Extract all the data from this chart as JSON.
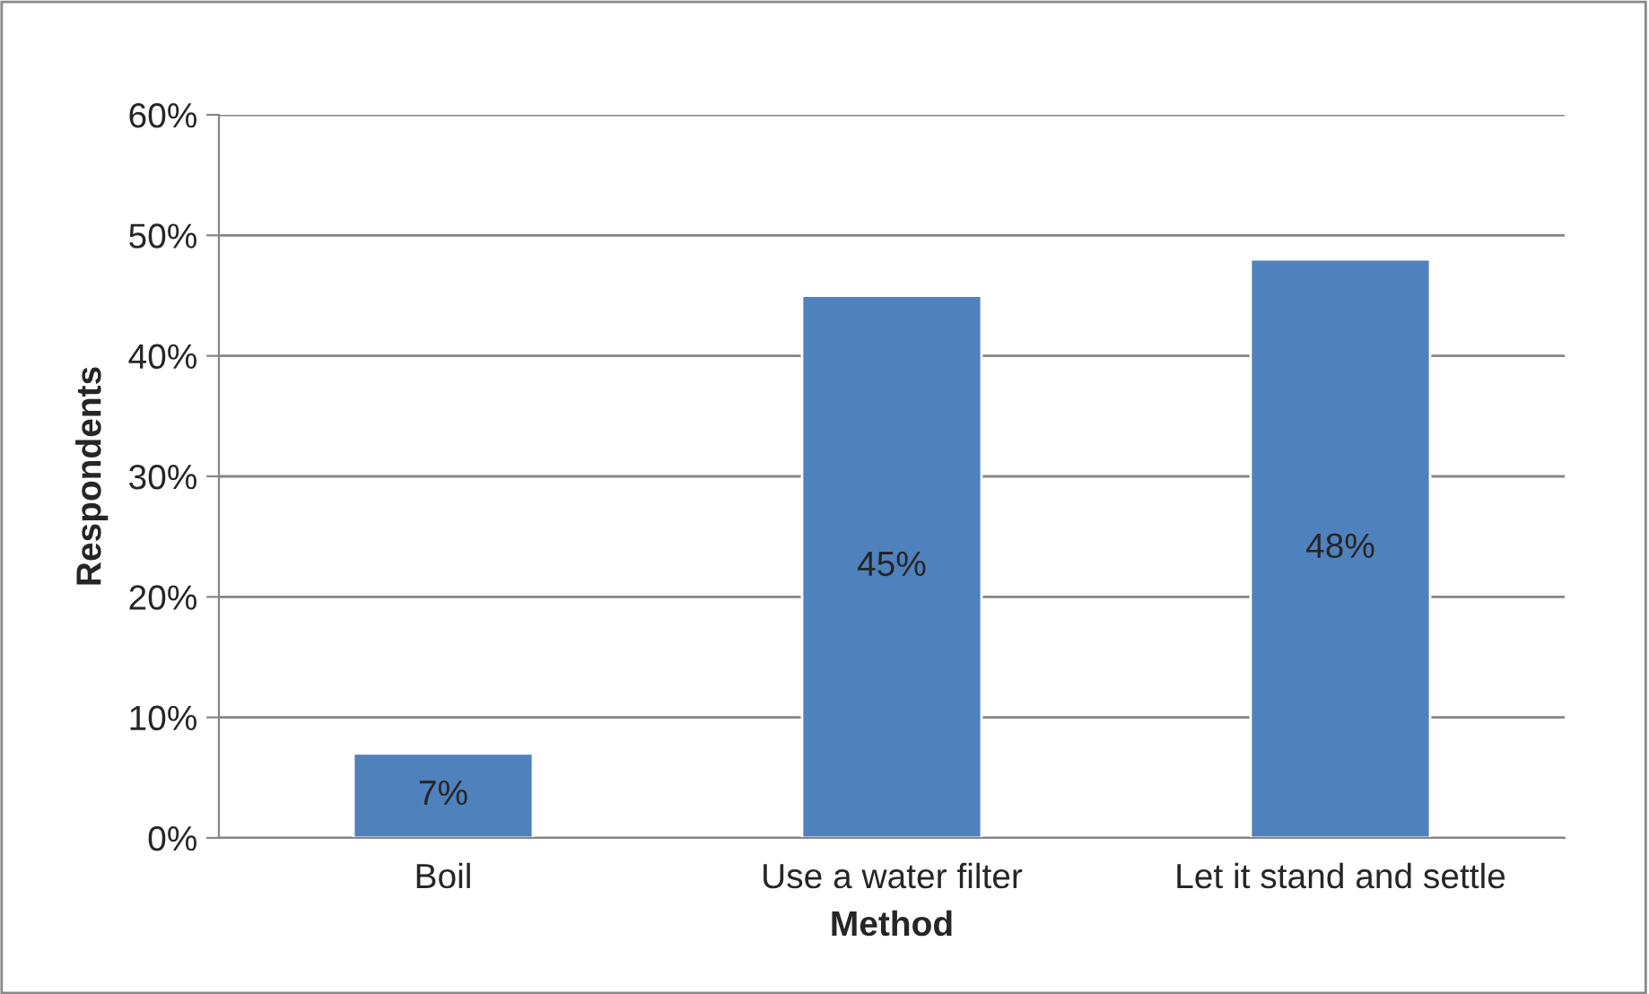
{
  "chart_data": {
    "type": "bar",
    "xlabel": "Method",
    "ylabel": "Respondents",
    "categories": [
      "Boil",
      "Use a water filter",
      "Let it stand and settle"
    ],
    "values": [
      7,
      45,
      48
    ],
    "color": "#4f81bd",
    "value_labels": [
      "7%",
      "45%",
      "48%"
    ],
    "ylim": [
      0,
      60
    ],
    "yticks": [
      {
        "value": 0,
        "label": "0%"
      },
      {
        "value": 10,
        "label": "10%"
      },
      {
        "value": 20,
        "label": "20%"
      },
      {
        "value": 30,
        "label": "30%"
      },
      {
        "value": 40,
        "label": "40%"
      },
      {
        "value": 50,
        "label": "50%"
      },
      {
        "value": 60,
        "label": "60%"
      }
    ],
    "grid": "y",
    "legend": false
  }
}
